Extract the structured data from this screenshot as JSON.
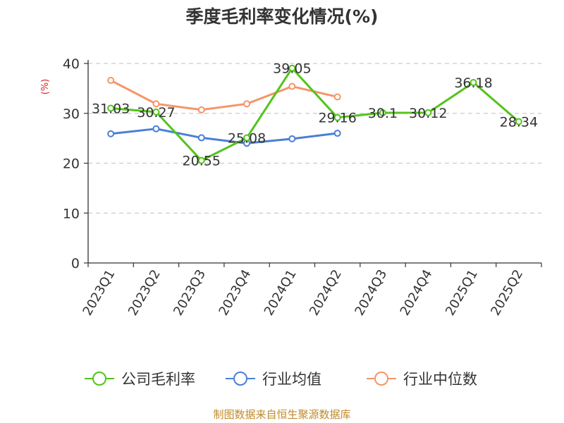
{
  "chart_data": {
    "type": "line",
    "title": "季度毛利率变化情况(%)",
    "ylabel": "(%)",
    "categories": [
      "2023Q1",
      "2023Q2",
      "2023Q3",
      "2023Q4",
      "2024Q1",
      "2024Q2",
      "2024Q3",
      "2024Q4",
      "2025Q1",
      "2025Q2"
    ],
    "yticks": [
      0,
      10,
      20,
      30,
      40
    ],
    "ylim": [
      0,
      40
    ],
    "grid": true,
    "legend_position": "bottom",
    "series": [
      {
        "name": "公司毛利率",
        "color": "#52c41a",
        "labeled": true,
        "values": [
          31.03,
          30.27,
          20.55,
          25.08,
          39.05,
          29.16,
          30.1,
          30.12,
          36.18,
          28.34
        ]
      },
      {
        "name": "行业均值",
        "color": "#4a7fd8",
        "labeled": false,
        "values": [
          25.9,
          26.9,
          25.1,
          24.0,
          24.9,
          26.0,
          null,
          null,
          null,
          null
        ]
      },
      {
        "name": "行业中位数",
        "color": "#f5956a",
        "labeled": false,
        "values": [
          36.6,
          31.9,
          30.7,
          31.9,
          35.4,
          33.3,
          null,
          null,
          null,
          null
        ]
      }
    ],
    "source": "制图数据来自恒生聚源数据库"
  }
}
